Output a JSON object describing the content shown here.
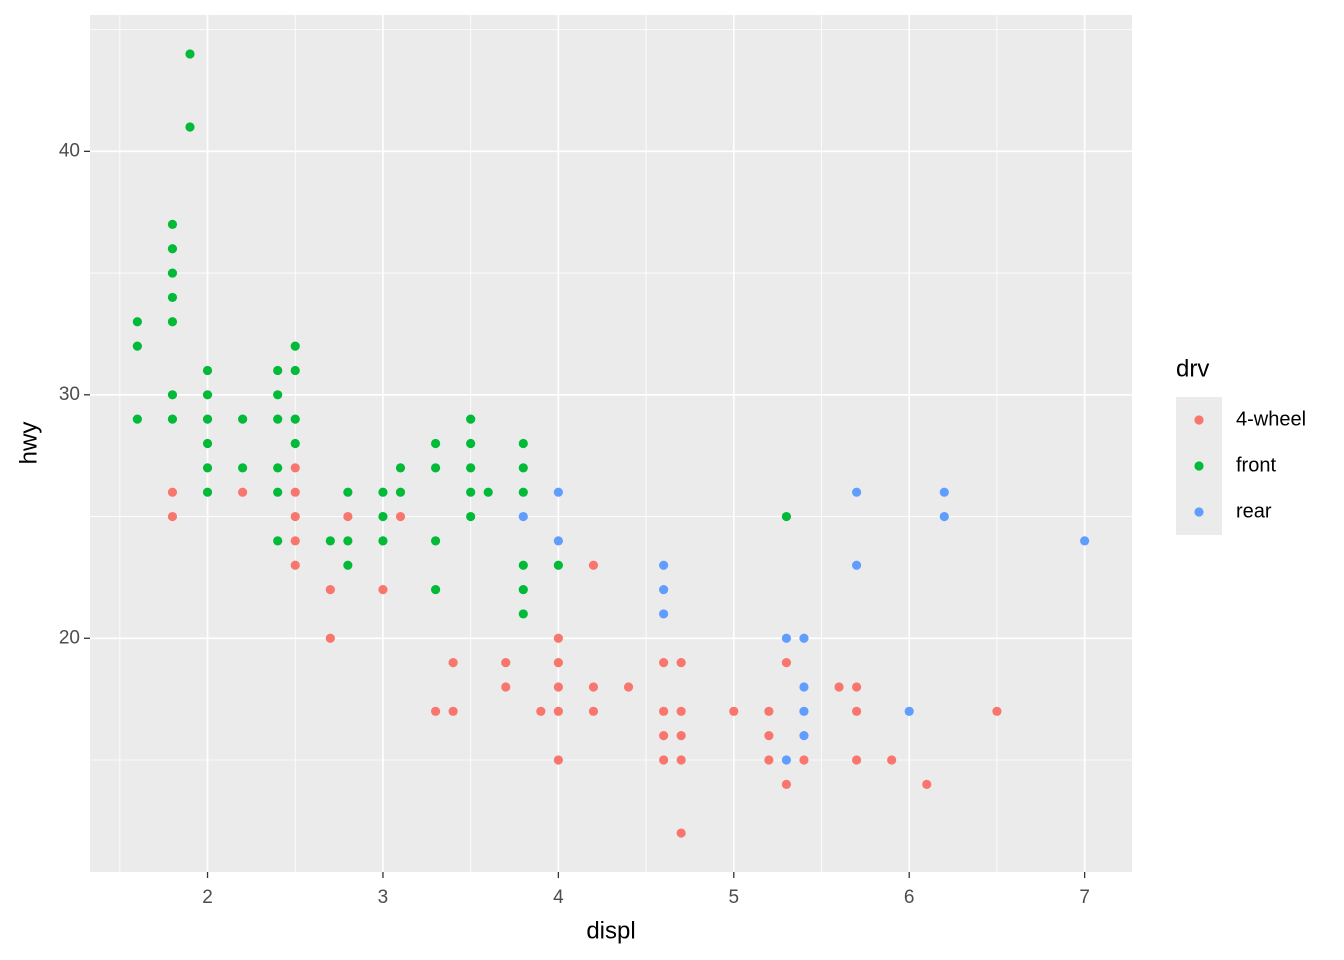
{
  "chart_data": {
    "type": "scatter",
    "x_label": "displ",
    "y_label": "hwy",
    "legend_title": "drv",
    "xlim": [
      1.33,
      7.27
    ],
    "ylim": [
      10.4,
      45.6
    ],
    "xticks": [
      2,
      3,
      4,
      5,
      6,
      7
    ],
    "yticks": [
      20,
      30,
      40
    ],
    "x_minor_ticks": [
      1.5,
      2.5,
      3.5,
      4.5,
      5.5,
      6.5
    ],
    "y_minor_ticks": [
      15,
      25,
      35,
      45
    ],
    "grid": true,
    "legend_position": "right",
    "series": [
      {
        "name": "4-wheel",
        "color": "#F8766D",
        "x": [
          1.8,
          1.8,
          2.2,
          2.5,
          2.5,
          2.5,
          2.5,
          2.5,
          2.7,
          2.7,
          2.8,
          3.0,
          3.1,
          3.4,
          3.3,
          3.4,
          3.7,
          3.7,
          3.9,
          4.0,
          4.0,
          4.0,
          4.0,
          4.0,
          4.2,
          4.2,
          4.2,
          4.4,
          4.6,
          4.6,
          4.6,
          4.6,
          4.7,
          4.7,
          4.7,
          4.7,
          4.7,
          5.0,
          5.2,
          5.2,
          5.2,
          5.3,
          5.3,
          5.4,
          5.6,
          5.7,
          5.7,
          5.7,
          5.9,
          6.1,
          6.5
        ],
        "y": [
          26,
          25,
          26,
          27,
          26,
          25,
          24,
          23,
          22,
          20,
          25,
          22,
          25,
          19,
          17,
          17,
          19,
          18,
          17,
          20,
          19,
          18,
          17,
          15,
          23,
          18,
          17,
          18,
          19,
          17,
          16,
          15,
          19,
          17,
          16,
          15,
          12,
          17,
          17,
          16,
          15,
          19,
          14,
          15,
          18,
          18,
          17,
          15,
          15,
          14,
          17
        ]
      },
      {
        "name": "front",
        "color": "#00BA38",
        "x": [
          1.9,
          1.9,
          1.8,
          1.8,
          1.8,
          1.8,
          1.8,
          1.6,
          1.6,
          1.6,
          1.8,
          1.8,
          2.0,
          2.0,
          2.0,
          2.0,
          2.0,
          2.0,
          2.2,
          2.2,
          2.4,
          2.4,
          2.4,
          2.4,
          2.4,
          2.4,
          2.5,
          2.5,
          2.5,
          2.5,
          2.7,
          2.8,
          2.8,
          2.8,
          3.0,
          3.0,
          3.0,
          3.1,
          3.1,
          3.3,
          3.3,
          3.3,
          3.3,
          3.5,
          3.5,
          3.5,
          3.5,
          3.5,
          3.6,
          3.8,
          3.8,
          3.8,
          3.8,
          3.8,
          3.8,
          4.0,
          5.3
        ],
        "y": [
          44,
          41,
          37,
          36,
          35,
          34,
          33,
          33,
          32,
          29,
          30,
          29,
          31,
          30,
          29,
          28,
          27,
          26,
          29,
          27,
          31,
          30,
          29,
          27,
          26,
          24,
          32,
          31,
          29,
          28,
          24,
          26,
          24,
          23,
          26,
          25,
          24,
          27,
          26,
          28,
          27,
          24,
          22,
          29,
          28,
          27,
          26,
          25,
          26,
          28,
          27,
          26,
          23,
          22,
          21,
          23,
          25
        ]
      },
      {
        "name": "rear",
        "color": "#619CFF",
        "x": [
          3.8,
          4.0,
          4.0,
          4.6,
          4.6,
          4.6,
          5.3,
          5.4,
          5.4,
          5.4,
          5.4,
          5.3,
          5.7,
          5.7,
          6.0,
          6.2,
          6.2,
          7.0
        ],
        "y": [
          25,
          26,
          24,
          23,
          22,
          21,
          20,
          20,
          18,
          17,
          16,
          15,
          26,
          23,
          17,
          26,
          25,
          24
        ]
      }
    ]
  }
}
